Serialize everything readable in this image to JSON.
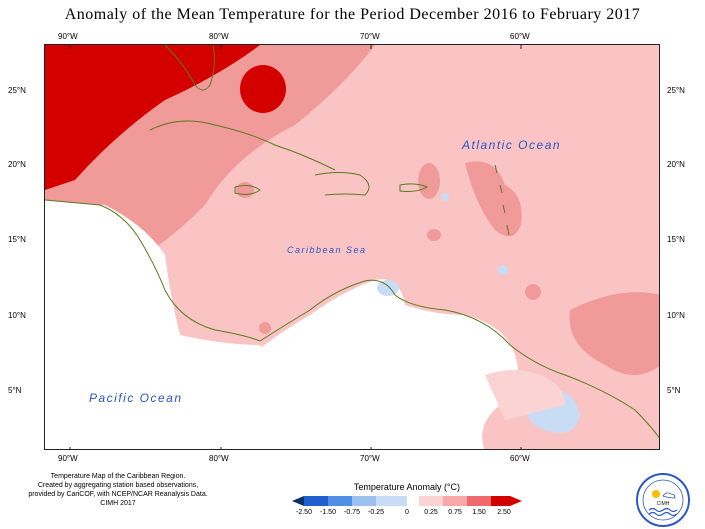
{
  "title": "Anomaly of the Mean Temperature for the Period December 2016 to February 2017",
  "axes": {
    "longitude_ticks": [
      "90°W",
      "80°W",
      "70°W",
      "60°W"
    ],
    "latitude_ticks": [
      "25°N",
      "20°N",
      "15°N",
      "10°N",
      "5°N"
    ]
  },
  "labels": {
    "atlantic": "Atlantic Ocean",
    "caribbean": "Caribbean Sea",
    "pacific": "Pacific Ocean"
  },
  "credits": [
    "Temperature Map of the Caribbean Region.",
    "Created by aggregating station based observations,",
    "provided by CariCOF, with NCEP/NCAR Reanalysis Data.",
    "CIMH 2017"
  ],
  "legend": {
    "title": "Temperature Anomaly (°C)",
    "labels": [
      "-2.50",
      "-1.50",
      "-0.75",
      "-0.25",
      "0",
      "0.25",
      "0.75",
      "1.50",
      "2.50"
    ],
    "colors": [
      "#08306b",
      "#1f5fd0",
      "#4f8fe6",
      "#9cc1ef",
      "#c8dcf5",
      "#ffffff",
      "#fbd3d3",
      "#f7a8a8",
      "#ef6a6a",
      "#d40000"
    ]
  },
  "logo_text": "CIMH",
  "colors": {
    "land_outline": "#5a7a1e",
    "ocean_label": "#2b55c8"
  }
}
